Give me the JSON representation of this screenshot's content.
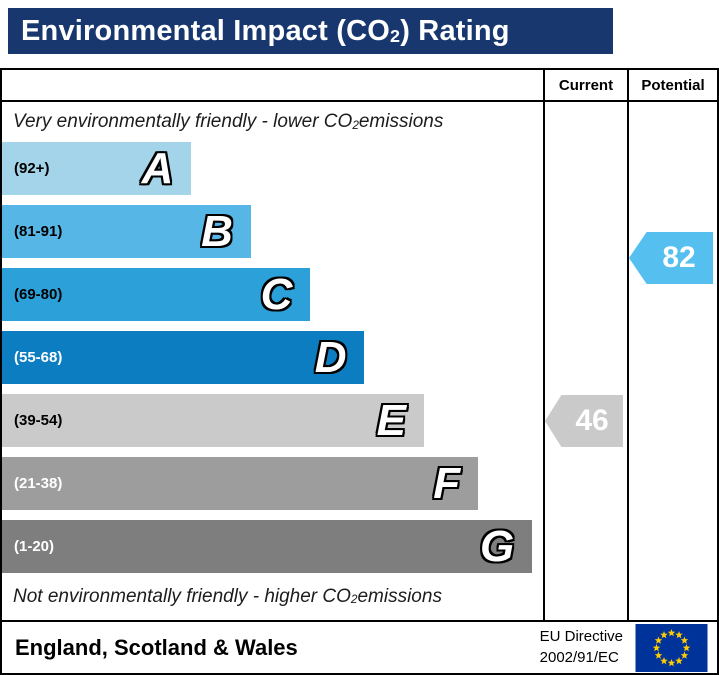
{
  "colors": {
    "title_bar_bg": "#17376e",
    "border": "#000000"
  },
  "title": {
    "pre": "Environmental Impact (CO",
    "sub": "2",
    "post": ") Rating"
  },
  "header": {
    "current": "Current",
    "potential": "Potential"
  },
  "top_note": {
    "pre": "Very environmentally friendly - lower CO",
    "sub": "2",
    "post": " emissions"
  },
  "bottom_note": {
    "pre": "Not environmentally friendly - higher CO",
    "sub": "2",
    "post": " emissions"
  },
  "chart_data": {
    "type": "bar",
    "title": "Environmental Impact (CO2) Rating",
    "categories": [
      "A",
      "B",
      "C",
      "D",
      "E",
      "F",
      "G"
    ],
    "band_ranges": [
      "92+",
      "81-91",
      "69-80",
      "55-68",
      "39-54",
      "21-38",
      "1-20"
    ],
    "top_label": "Very environmentally friendly - lower CO2 emissions",
    "bottom_label": "Not environmentally friendly - higher CO2 emissions",
    "bands": [
      {
        "letter": "A",
        "range": "(92+)",
        "color": "#a4d4ea",
        "width_pct": 35,
        "label_color": "#000000"
      },
      {
        "letter": "B",
        "range": "(81-91)",
        "color": "#56b6e5",
        "width_pct": 46,
        "label_color": "#000000"
      },
      {
        "letter": "C",
        "range": "(69-80)",
        "color": "#2ba0d9",
        "width_pct": 57,
        "label_color": "#000000"
      },
      {
        "letter": "D",
        "range": "(55-68)",
        "color": "#0d7dc1",
        "width_pct": 67,
        "label_color": "#ffffff"
      },
      {
        "letter": "E",
        "range": "(39-54)",
        "color": "#cacaca",
        "width_pct": 78,
        "label_color": "#000000"
      },
      {
        "letter": "F",
        "range": "(21-38)",
        "color": "#9d9d9d",
        "width_pct": 88,
        "label_color": "#ffffff"
      },
      {
        "letter": "G",
        "range": "(1-20)",
        "color": "#7e7e7e",
        "width_pct": 98,
        "label_color": "#ffffff"
      }
    ],
    "current": {
      "value": 46,
      "band": "E",
      "color": "#cacaca"
    },
    "potential": {
      "value": 82,
      "band": "B",
      "color": "#55c0ef"
    }
  },
  "footer": {
    "region": "England, Scotland & Wales",
    "directive_line1": "EU Directive",
    "directive_line2": "2002/91/EC",
    "flag_icon": "eu-flag"
  }
}
